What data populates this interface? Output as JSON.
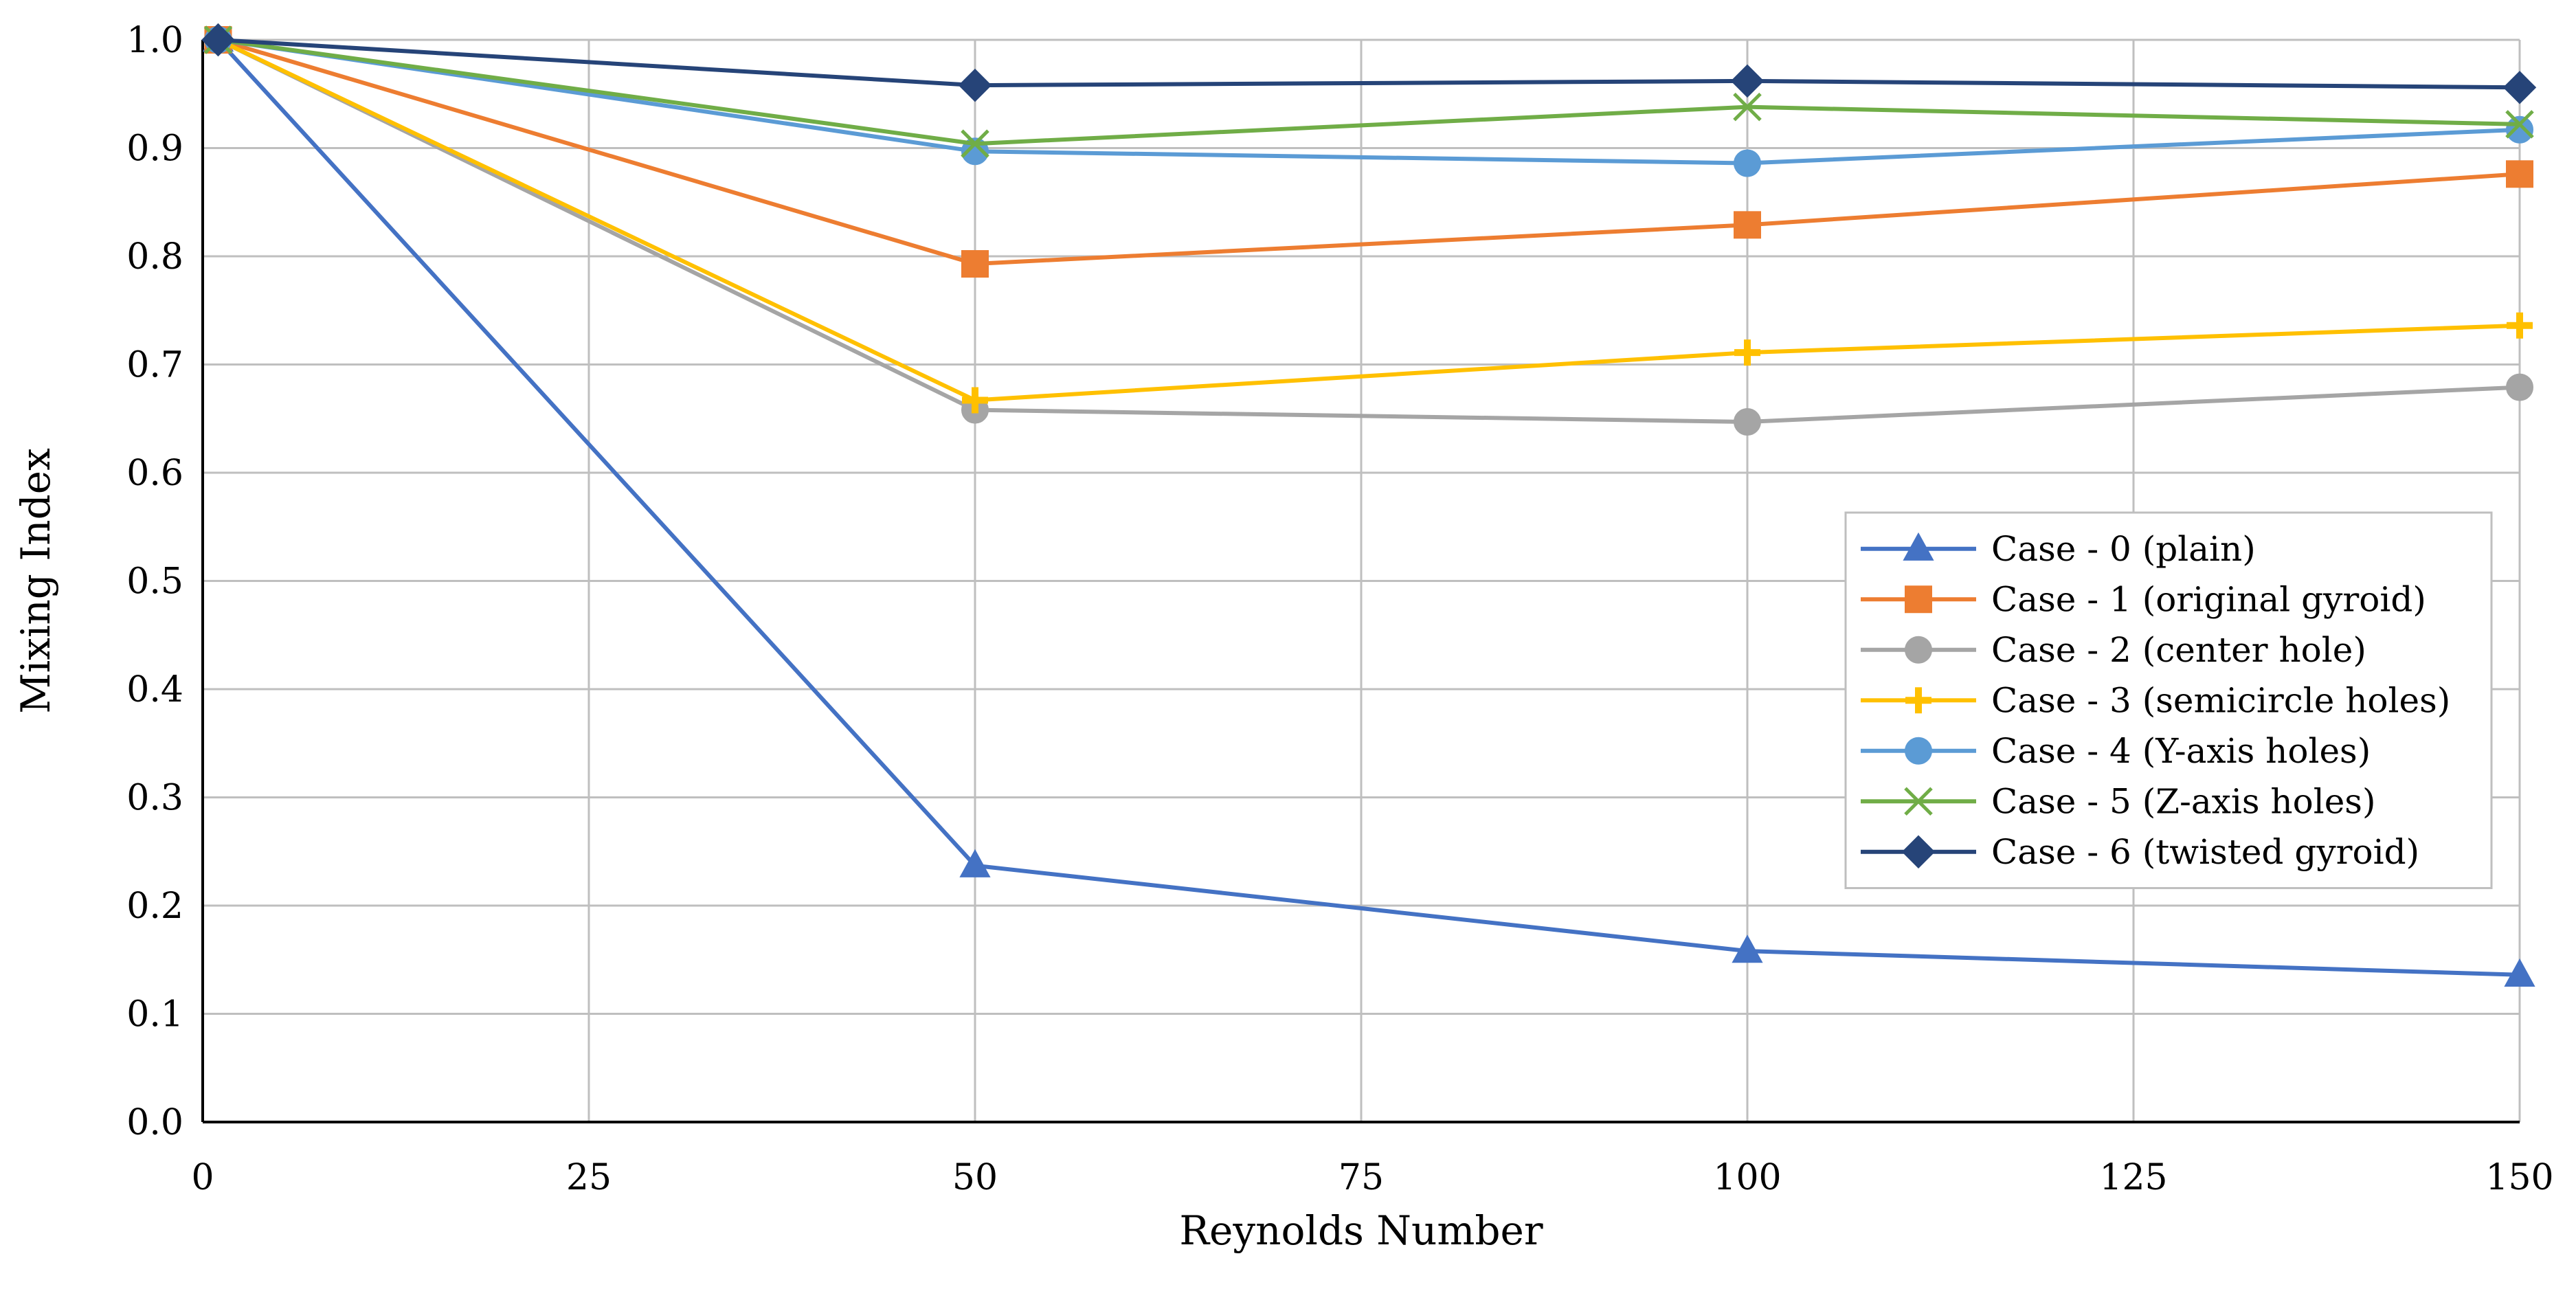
{
  "chart_data": {
    "type": "line",
    "title": "",
    "xlabel": "Reynolds Number",
    "ylabel": "Mixing Index",
    "xlim": [
      0,
      150
    ],
    "ylim": [
      0.0,
      1.0
    ],
    "xticks": [
      0,
      25,
      50,
      75,
      100,
      125,
      150
    ],
    "yticks": [
      0.0,
      0.1,
      0.2,
      0.3,
      0.4,
      0.5,
      0.6,
      0.7,
      0.8,
      0.9,
      1.0
    ],
    "xtick_labels": [
      "0",
      "25",
      "50",
      "75",
      "100",
      "125",
      "150"
    ],
    "ytick_labels": [
      "0.0",
      "0.1",
      "0.2",
      "0.3",
      "0.4",
      "0.5",
      "0.6",
      "0.7",
      "0.8",
      "0.9",
      "1.0"
    ],
    "grid": true,
    "legend_position": "right-center",
    "x": [
      1,
      50,
      100,
      150
    ],
    "series": [
      {
        "name": "Case - 0 (plain)",
        "values": [
          1.0,
          0.237,
          0.158,
          0.136
        ],
        "color": "#4472C4",
        "marker": "triangle"
      },
      {
        "name": "Case - 1 (original gyroid)",
        "values": [
          1.0,
          0.793,
          0.829,
          0.876
        ],
        "color": "#ED7D31",
        "marker": "square"
      },
      {
        "name": "Case - 2 (center hole)",
        "values": [
          1.0,
          0.658,
          0.647,
          0.679
        ],
        "color": "#A5A5A5",
        "marker": "circle"
      },
      {
        "name": "Case - 3 (semicircle holes)",
        "values": [
          1.0,
          0.667,
          0.711,
          0.736
        ],
        "color": "#FFC000",
        "marker": "plus"
      },
      {
        "name": "Case - 4 (Y-axis holes)",
        "values": [
          1.0,
          0.897,
          0.886,
          0.917
        ],
        "color": "#5B9BD5",
        "marker": "circle"
      },
      {
        "name": "Case - 5 (Z-axis holes)",
        "values": [
          1.0,
          0.904,
          0.938,
          0.922
        ],
        "color": "#70AD47",
        "marker": "x"
      },
      {
        "name": "Case - 6 (twisted gyroid)",
        "values": [
          1.0,
          0.958,
          0.962,
          0.956
        ],
        "color": "#264478",
        "marker": "diamond"
      }
    ]
  }
}
